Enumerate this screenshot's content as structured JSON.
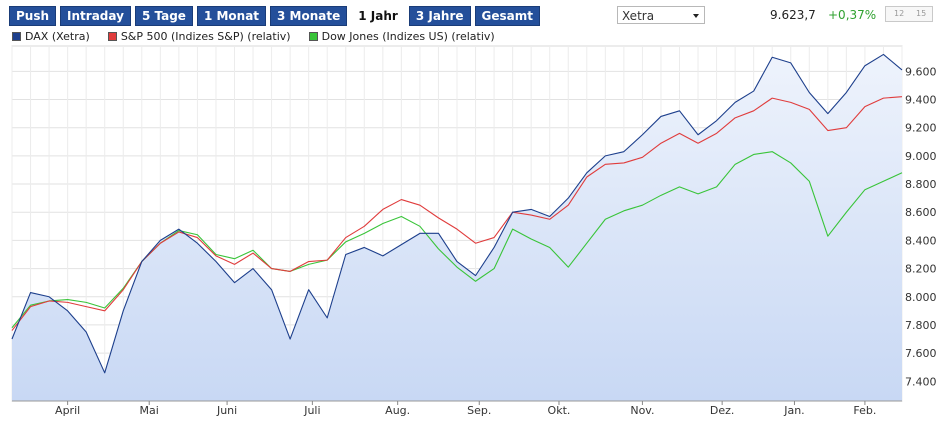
{
  "toolbar": {
    "tabs": [
      "Push",
      "Intraday",
      "5 Tage",
      "1 Monat",
      "3 Monate",
      "1 Jahr",
      "3 Jahre",
      "Gesamt"
    ],
    "active_tab": "1 Jahr",
    "exchange": "Xetra",
    "price": "9.623,7",
    "change": "+0,37%",
    "change_color": "#2fa12f",
    "zoom_labels": [
      "12",
      "15"
    ]
  },
  "chart_data": {
    "type": "line",
    "title": "",
    "xlabel": "",
    "ylabel": "",
    "x_ticks": [
      "April",
      "Mai",
      "Juni",
      "Juli",
      "Aug.",
      "Sep.",
      "Okt.",
      "Nov.",
      "Dez.",
      "Jan.",
      "Feb."
    ],
    "y_ticks": [
      "7.400",
      "7.600",
      "7.800",
      "8.000",
      "8.200",
      "8.400",
      "8.600",
      "8.800",
      "9.000",
      "9.200",
      "9.400",
      "9.600"
    ],
    "ylim": [
      7260,
      9780
    ],
    "x_range": [
      0,
      48
    ],
    "x_tick_positions": [
      3,
      7.4,
      11.6,
      16.2,
      20.8,
      25.2,
      29.5,
      34,
      38.3,
      42.2,
      46
    ],
    "grid": true,
    "area_under": "DAX (Xetra)",
    "legend_position": "top-left",
    "x": [
      0,
      1,
      2,
      3,
      4,
      5,
      6,
      7,
      8,
      9,
      10,
      11,
      12,
      13,
      14,
      15,
      16,
      17,
      18,
      19,
      20,
      21,
      22,
      23,
      24,
      25,
      26,
      27,
      28,
      29,
      30,
      31,
      32,
      33,
      34,
      35,
      36,
      37,
      38,
      39,
      40,
      41,
      42,
      43,
      44,
      45,
      46,
      47,
      48
    ],
    "series": [
      {
        "name": "DAX (Xetra)",
        "color": "#1d3f8c",
        "values": [
          7700,
          8030,
          8000,
          7900,
          7750,
          7460,
          7900,
          8250,
          8400,
          8480,
          8380,
          8250,
          8100,
          8200,
          8050,
          7700,
          8050,
          7850,
          8300,
          8350,
          8290,
          8370,
          8450,
          8450,
          8250,
          8150,
          8350,
          8600,
          8620,
          8570,
          8700,
          8880,
          9000,
          9030,
          9150,
          9280,
          9320,
          9150,
          9250,
          9380,
          9460,
          9700,
          9660,
          9450,
          9300,
          9450,
          9640,
          9720,
          9610
        ]
      },
      {
        "name": "S&P 500 (Indizes S&P) (relativ)",
        "color": "#e03c3c",
        "values": [
          7760,
          7930,
          7970,
          7960,
          7930,
          7900,
          8050,
          8250,
          8380,
          8460,
          8420,
          8290,
          8230,
          8310,
          8200,
          8180,
          8250,
          8260,
          8420,
          8500,
          8620,
          8690,
          8650,
          8560,
          8480,
          8380,
          8420,
          8600,
          8580,
          8550,
          8650,
          8850,
          8940,
          8950,
          8990,
          9090,
          9160,
          9090,
          9160,
          9270,
          9320,
          9410,
          9380,
          9330,
          9180,
          9200,
          9350,
          9410,
          9420
        ]
      },
      {
        "name": "Dow Jones (Indizes US) (relativ)",
        "color": "#39c439",
        "values": [
          7780,
          7940,
          7970,
          7980,
          7960,
          7920,
          8060,
          8250,
          8380,
          8470,
          8440,
          8300,
          8270,
          8330,
          8200,
          8180,
          8230,
          8260,
          8390,
          8450,
          8520,
          8570,
          8500,
          8340,
          8210,
          8110,
          8200,
          8480,
          8410,
          8350,
          8210,
          8380,
          8550,
          8610,
          8650,
          8720,
          8780,
          8730,
          8780,
          8940,
          9010,
          9030,
          8950,
          8820,
          8430,
          8600,
          8760,
          8820,
          8880
        ]
      }
    ]
  }
}
